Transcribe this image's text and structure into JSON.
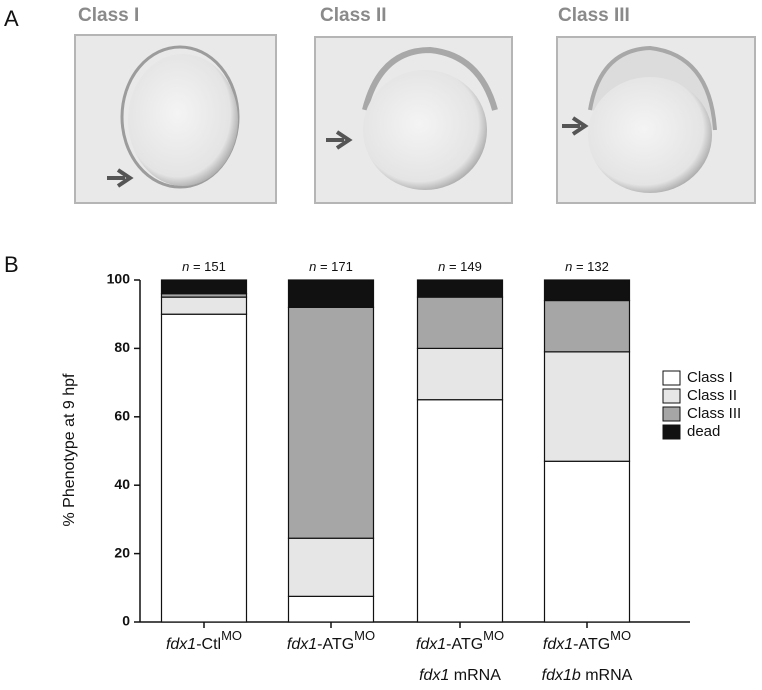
{
  "figure": {
    "panel_a_letter": "A",
    "panel_b_letter": "B",
    "image_labels": [
      "Class I",
      "Class II",
      "Class III"
    ]
  },
  "chart_data": {
    "type": "stacked_bar",
    "ylabel": "% Phenotype at 9 hpf",
    "categories": [
      {
        "gene": "fdx1",
        "label": "-Ctl",
        "sup": "MO"
      },
      {
        "gene": "fdx1",
        "label": "-ATG",
        "sup": "MO"
      },
      {
        "gene": "fdx1",
        "label": "-ATG",
        "sup": "MO",
        "rescue_gene": "fdx1",
        "rescue": " mRNA"
      },
      {
        "gene": "fdx1",
        "label": "-ATG",
        "sup": "MO",
        "rescue_gene": "fdx1b",
        "rescue": " mRNA"
      }
    ],
    "sample_size_symbol": "n",
    "sample_size_sep": " = ",
    "sample_sizes": [
      151,
      171,
      149,
      132
    ],
    "series": [
      {
        "name": "Class I",
        "color": "#ffffff",
        "values": [
          90,
          7.5,
          65,
          47
        ]
      },
      {
        "name": "Class II",
        "color": "#e6e6e6",
        "values": [
          5,
          17,
          15,
          32
        ]
      },
      {
        "name": "Class III",
        "color": "#a6a6a6",
        "values": [
          1,
          67.5,
          15,
          15
        ]
      },
      {
        "name": "dead",
        "color": "#111111",
        "values": [
          4,
          8,
          5,
          6
        ]
      }
    ],
    "ylim": [
      0,
      100
    ],
    "yticks": [
      0,
      20,
      40,
      60,
      80,
      100
    ],
    "legend": "right"
  }
}
